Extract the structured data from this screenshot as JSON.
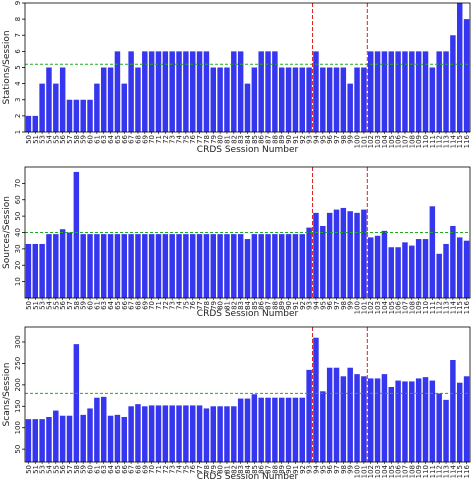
{
  "chart_data": [
    {
      "type": "bar",
      "ylabel": "Stations/Session",
      "xlabel": "CRDS Session Number",
      "categories": [
        "50",
        "51",
        "53",
        "54",
        "55",
        "56",
        "57",
        "58",
        "59",
        "60",
        "61",
        "63",
        "64",
        "65",
        "66",
        "67",
        "68",
        "69",
        "70",
        "71",
        "72",
        "73",
        "74",
        "75",
        "76",
        "77",
        "78",
        "79",
        "80",
        "81",
        "82",
        "83",
        "84",
        "85",
        "86",
        "87",
        "88",
        "89",
        "90",
        "91",
        "92",
        "93",
        "94",
        "95",
        "96",
        "97",
        "98",
        "99",
        "100",
        "101",
        "102",
        "103",
        "104",
        "105",
        "106",
        "107",
        "108",
        "109",
        "110",
        "111",
        "112",
        "113",
        "114",
        "115",
        "116"
      ],
      "values": [
        2,
        2,
        4,
        5,
        4,
        5,
        3,
        3,
        3,
        3,
        4,
        5,
        5,
        6,
        4,
        6,
        5,
        6,
        6,
        6,
        6,
        6,
        6,
        6,
        6,
        6,
        6,
        5,
        5,
        5,
        6,
        6,
        4,
        5,
        6,
        6,
        6,
        5,
        5,
        5,
        5,
        5,
        6,
        5,
        5,
        5,
        5,
        4,
        5,
        5,
        6,
        6,
        6,
        6,
        6,
        6,
        6,
        6,
        6,
        5,
        6,
        6,
        7,
        9,
        8
      ],
      "color": "#3636ee",
      "ylim": [
        1,
        9
      ],
      "yticks": [
        1,
        2,
        3,
        4,
        5,
        6,
        7,
        8,
        9
      ],
      "mean_line": 5.2,
      "vlines_before": [
        "94",
        "102"
      ]
    },
    {
      "type": "bar",
      "ylabel": "Sources/Session",
      "xlabel": "CRDS Session Number",
      "categories": [
        "50",
        "51",
        "53",
        "54",
        "55",
        "56",
        "57",
        "58",
        "59",
        "60",
        "61",
        "63",
        "64",
        "65",
        "66",
        "67",
        "68",
        "69",
        "70",
        "71",
        "72",
        "73",
        "74",
        "75",
        "76",
        "77",
        "78",
        "79",
        "80",
        "81",
        "82",
        "83",
        "84",
        "85",
        "86",
        "87",
        "88",
        "89",
        "90",
        "91",
        "92",
        "93",
        "94",
        "95",
        "96",
        "97",
        "98",
        "99",
        "100",
        "101",
        "102",
        "103",
        "104",
        "105",
        "106",
        "107",
        "108",
        "109",
        "110",
        "111",
        "112",
        "113",
        "114",
        "115",
        "116"
      ],
      "values": [
        33,
        33,
        33,
        39,
        39,
        42,
        40,
        77,
        39,
        39,
        39,
        39,
        39,
        39,
        39,
        39,
        39,
        39,
        39,
        39,
        39,
        39,
        39,
        39,
        39,
        39,
        39,
        39,
        39,
        39,
        39,
        39,
        36,
        39,
        39,
        39,
        39,
        39,
        39,
        39,
        39,
        43,
        52,
        44,
        52,
        54,
        55,
        53,
        52,
        54,
        37,
        38,
        41,
        31,
        31,
        34,
        32,
        36,
        36,
        56,
        27,
        33,
        44,
        37,
        35
      ],
      "color": "#3636ee",
      "ylim": [
        0,
        80
      ],
      "yticks": [
        10,
        20,
        30,
        40,
        50,
        60,
        70
      ],
      "mean_line": 40,
      "vlines_before": [
        "94",
        "102"
      ]
    },
    {
      "type": "bar",
      "ylabel": "Scans/Session",
      "xlabel": "CRDS Session Number",
      "categories": [
        "50",
        "51",
        "53",
        "54",
        "55",
        "56",
        "57",
        "58",
        "59",
        "60",
        "61",
        "63",
        "64",
        "65",
        "66",
        "67",
        "68",
        "69",
        "70",
        "71",
        "72",
        "73",
        "74",
        "75",
        "76",
        "77",
        "78",
        "79",
        "80",
        "81",
        "82",
        "83",
        "84",
        "85",
        "86",
        "87",
        "88",
        "89",
        "90",
        "91",
        "92",
        "93",
        "94",
        "95",
        "96",
        "97",
        "98",
        "99",
        "100",
        "101",
        "102",
        "103",
        "104",
        "105",
        "106",
        "107",
        "108",
        "109",
        "110",
        "111",
        "112",
        "113",
        "114",
        "115",
        "116"
      ],
      "values": [
        120,
        120,
        120,
        125,
        140,
        128,
        128,
        295,
        130,
        145,
        170,
        172,
        128,
        130,
        125,
        150,
        155,
        150,
        152,
        152,
        152,
        152,
        152,
        152,
        152,
        152,
        145,
        150,
        150,
        150,
        150,
        168,
        168,
        178,
        170,
        170,
        170,
        170,
        170,
        170,
        170,
        235,
        310,
        185,
        240,
        240,
        220,
        240,
        225,
        220,
        215,
        215,
        225,
        195,
        210,
        208,
        208,
        215,
        218,
        210,
        180,
        165,
        258,
        205,
        220
      ],
      "color": "#3636ee",
      "ylim": [
        20,
        335
      ],
      "yticks": [
        50,
        100,
        150,
        200,
        250,
        300
      ],
      "mean_line": 180,
      "vlines_before": [
        "94",
        "102"
      ]
    }
  ]
}
